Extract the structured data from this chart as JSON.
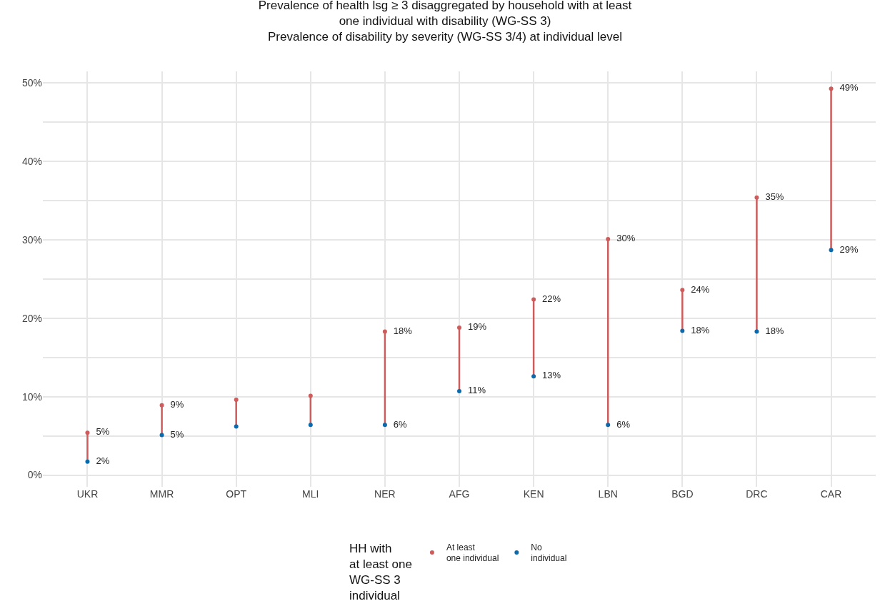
{
  "chart_data": {
    "type": "scatter",
    "title": "Prevalence of health lsg ≥ 3 disaggregated by household with at least\none individual with disability (WG-SS 3)\nPrevalence of disability by severity (WG-SS 3/4) at individual level",
    "categories": [
      "UKR",
      "MMR",
      "OPT",
      "MLI",
      "NER",
      "AFG",
      "KEN",
      "LBN",
      "BGD",
      "DRC",
      "CAR"
    ],
    "series": [
      {
        "name": "At least\none individual",
        "color": "#cd5c5c",
        "values": [
          5.4,
          8.9,
          9.6,
          10.1,
          18.3,
          18.8,
          22.4,
          30.1,
          23.6,
          35.4,
          49.3
        ],
        "value_labels": [
          "5%",
          "9%",
          null,
          null,
          "18%",
          "19%",
          "22%",
          "30%",
          "24%",
          "35%",
          "49%"
        ]
      },
      {
        "name": "No\nindividual",
        "color": "#0a6aae",
        "values": [
          1.7,
          5.1,
          6.2,
          6.4,
          6.4,
          10.7,
          12.6,
          6.4,
          18.4,
          18.3,
          28.7
        ],
        "value_labels": [
          "2%",
          "5%",
          null,
          null,
          "6%",
          "11%",
          "13%",
          "6%",
          "18%",
          "18%",
          "29%"
        ]
      }
    ],
    "legend_title": "HH with\nat least one\nWG-SS 3\nindividual",
    "ylim": [
      -1.5,
      51.5
    ],
    "yticks": [
      {
        "value": 0,
        "label": "0%"
      },
      {
        "value": 5,
        "label": null
      },
      {
        "value": 10,
        "label": "10%"
      },
      {
        "value": 15,
        "label": null
      },
      {
        "value": 20,
        "label": "20%"
      },
      {
        "value": 25,
        "label": null
      },
      {
        "value": 30,
        "label": "30%"
      },
      {
        "value": 35,
        "label": null
      },
      {
        "value": 40,
        "label": "40%"
      },
      {
        "value": 45,
        "label": null
      },
      {
        "value": 50,
        "label": "50%"
      }
    ],
    "grid": true,
    "legend": "bottom",
    "marker": "circle"
  }
}
